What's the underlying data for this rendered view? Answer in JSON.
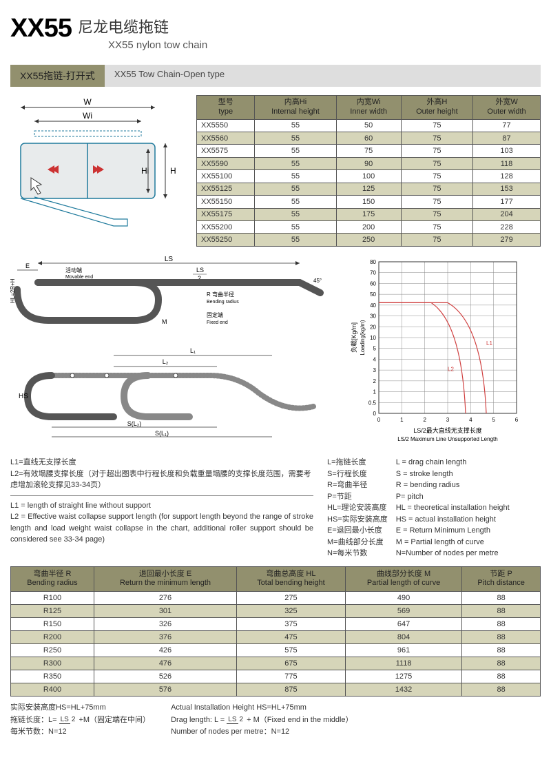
{
  "title": {
    "code": "XX55",
    "cn": "尼龙电缆拖链",
    "en": "XX55 nylon tow chain"
  },
  "section": {
    "cn": "XX55拖链-打开式",
    "en": "XX55 Tow Chain-Open type"
  },
  "diagram1": {
    "labels": {
      "W": "W",
      "Wi": "Wi",
      "Hi": "Hi",
      "H": "H"
    },
    "colors": {
      "line": "#1f7a9c",
      "arrow_red": "#cc3333",
      "fill": "#d9e0e2"
    }
  },
  "spec_table": {
    "headers": [
      {
        "cn": "型号",
        "en": "type"
      },
      {
        "cn": "内高Hi",
        "en": "Internal height"
      },
      {
        "cn": "内宽Wi",
        "en": "Inner width"
      },
      {
        "cn": "外高H",
        "en": "Outer height"
      },
      {
        "cn": "外宽W",
        "en": "Outer width"
      }
    ],
    "rows": [
      [
        "XX5550",
        "55",
        "50",
        "75",
        "77"
      ],
      [
        "XX5560",
        "55",
        "60",
        "75",
        "87"
      ],
      [
        "XX5575",
        "55",
        "75",
        "75",
        "103"
      ],
      [
        "XX5590",
        "55",
        "90",
        "75",
        "118"
      ],
      [
        "XX55100",
        "55",
        "100",
        "75",
        "128"
      ],
      [
        "XX55125",
        "55",
        "125",
        "75",
        "153"
      ],
      [
        "XX55150",
        "55",
        "150",
        "75",
        "177"
      ],
      [
        "XX55175",
        "55",
        "175",
        "75",
        "204"
      ],
      [
        "XX55200",
        "55",
        "200",
        "75",
        "228"
      ],
      [
        "XX55250",
        "55",
        "250",
        "75",
        "279"
      ]
    ]
  },
  "diagram2": {
    "labels": {
      "LS": "LS",
      "LS2": "LS",
      "LS2b": "2",
      "E": "E",
      "movable_cn": "活动端",
      "movable_en": "Movable end",
      "R_cn": "R 弯曲半径",
      "R_en": "Bending radius",
      "fixed_cn": "固定端",
      "fixed_en": "Fixed end",
      "HL": "HL=2R+H",
      "M": "M",
      "a45": "45°",
      "L1": "L₁",
      "L2": "L₂",
      "HS": "HS",
      "SL2": "S(L₂)",
      "SL1": "S(L₁)"
    }
  },
  "chart": {
    "ylabel_cn": "负载[Kg/m]",
    "ylabel_en": "Loading(kg/m)",
    "xlabel_cn": "LS/2最大直线无支撑长度",
    "xlabel_en": "LS/2 Maximum Line Unsupported Length",
    "yticks": [
      "80",
      "70",
      "60",
      "50",
      "40",
      "30",
      "20",
      "10",
      "5",
      "4",
      "3",
      "2",
      "1",
      "0.5",
      "0"
    ],
    "xticks": [
      "0",
      "1",
      "2",
      "3",
      "4",
      "5",
      "6"
    ],
    "line_color": "#d04040",
    "grid_color": "#888888",
    "series": {
      "L1_label": "L1",
      "L2_label": "L2"
    }
  },
  "defs_left": {
    "l1_cn": "L1=直线无支撑长度",
    "l2_cn": "L2=有效塌腰支撑长度（对于超出图表中行程长度和负载重量塌腰的支撑长度范围，需要考虑增加滚轮支撑见33-34页）",
    "l1_en": "L1 = length of straight line without support",
    "l2_en": "L2 = Effective waist collapse support length (for support length beyond the range of stroke length and load weight waist collapse in the chart, additional roller support should be considered see 33-34 page)"
  },
  "defs_right": {
    "cn": [
      "L=拖链长度",
      "S=行程长度",
      "R=弯曲半径",
      "P=节距",
      "HL=理论安装高度",
      "HS=实际安装高度",
      "E=退回最小长度",
      "M=曲线部分长度",
      "N=每米节数"
    ],
    "en": [
      "L = drag chain length",
      "S = stroke length",
      "R = bending radius",
      "P= pitch",
      "HL = theoretical installation height",
      "HS = actual installation height",
      "E = Return Minimum Length",
      "M = Partial length of curve",
      "N=Number of nodes per metre"
    ]
  },
  "bend_table": {
    "headers": [
      {
        "cn": "弯曲半径 R",
        "en": "Bending radius"
      },
      {
        "cn": "退回最小长度 E",
        "en": "Return the minimum length"
      },
      {
        "cn": "弯曲总高度 HL",
        "en": "Total bending height"
      },
      {
        "cn": "曲线部分长度 M",
        "en": "Partial length of curve"
      },
      {
        "cn": "节距 P",
        "en": "Pitch distance"
      }
    ],
    "rows": [
      [
        "R100",
        "276",
        "275",
        "490",
        "88"
      ],
      [
        "R125",
        "301",
        "325",
        "569",
        "88"
      ],
      [
        "R150",
        "326",
        "375",
        "647",
        "88"
      ],
      [
        "R200",
        "376",
        "475",
        "804",
        "88"
      ],
      [
        "R250",
        "426",
        "575",
        "961",
        "88"
      ],
      [
        "R300",
        "476",
        "675",
        "1118",
        "88"
      ],
      [
        "R350",
        "526",
        "775",
        "1275",
        "88"
      ],
      [
        "R400",
        "576",
        "875",
        "1432",
        "88"
      ]
    ]
  },
  "footer": {
    "l1_cn": "实际安装高度HS=HL+75mm",
    "l2_cn_a": "拖链长度：L= ",
    "l2_cn_b": " +M（固定端在中间）",
    "l3_cn": "每米节数：N=12",
    "l1_en": "Actual Installation Height HS=HL+75mm",
    "l2_en_a": "Drag length: L = ",
    "l2_en_b": " + M（Fixed end in the middle）",
    "l3_en": "Number of nodes per metre：N=12",
    "frac_top": "LS",
    "frac_bot": "2"
  }
}
